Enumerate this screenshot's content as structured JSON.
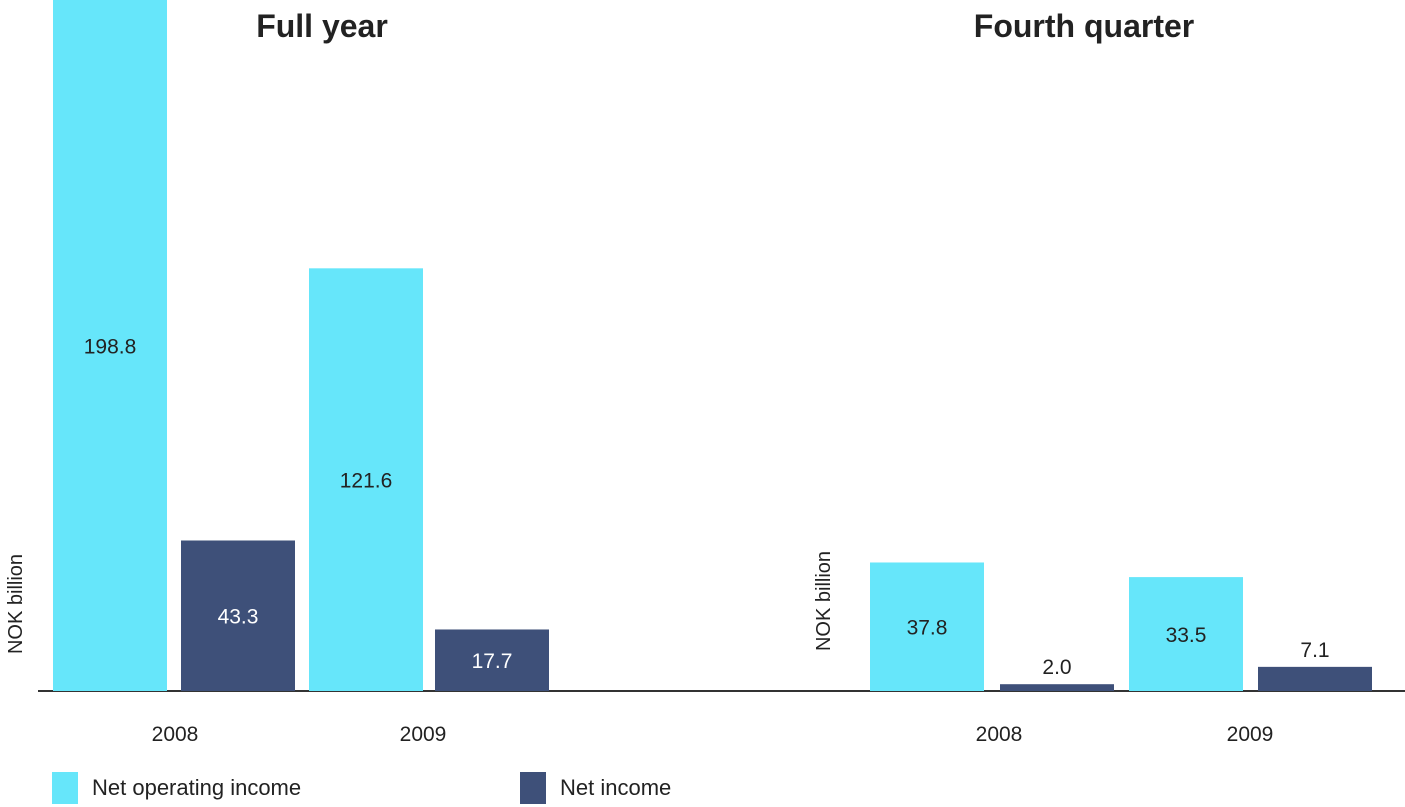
{
  "colors": {
    "net_operating_income": "#66e6fa",
    "net_income": "#3e5079",
    "axis": "#333333",
    "label_on_light": "#222222",
    "label_on_dark": "#ffffff"
  },
  "legend": {
    "items": [
      {
        "label": "Net operating income",
        "color": "#66e6fa"
      },
      {
        "label": "Net income",
        "color": "#3e5079"
      }
    ]
  },
  "chart_data": [
    {
      "type": "bar",
      "title": "Full year",
      "ylabel": "NOK billion",
      "categories": [
        "2008",
        "2009"
      ],
      "series": [
        {
          "name": "Net operating income",
          "values": [
            198.8,
            121.6
          ],
          "labels": [
            "198.8",
            "121.6"
          ]
        },
        {
          "name": "Net income",
          "values": [
            43.3,
            17.7
          ],
          "labels": [
            "43.3",
            "17.7"
          ]
        }
      ]
    },
    {
      "type": "bar",
      "title": "Fourth quarter",
      "ylabel": "NOK billion",
      "categories": [
        "2008",
        "2009"
      ],
      "series": [
        {
          "name": "Net operating income",
          "values": [
            37.8,
            33.5
          ],
          "labels": [
            "37.8",
            "33.5"
          ]
        },
        {
          "name": "Net income",
          "values": [
            2.0,
            7.1
          ],
          "labels": [
            "2.0",
            "7.1"
          ]
        }
      ]
    }
  ]
}
